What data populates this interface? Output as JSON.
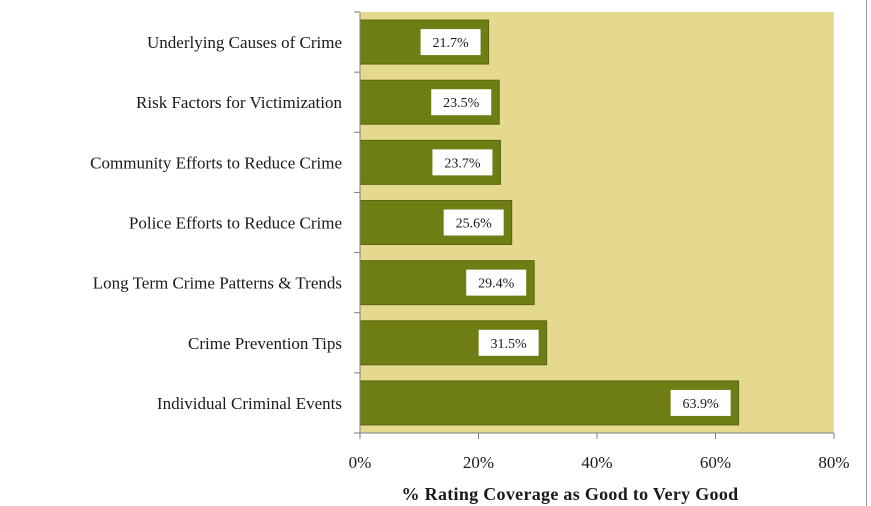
{
  "chart_data": {
    "type": "bar",
    "orientation": "horizontal",
    "categories": [
      "Underlying Causes of Crime",
      "Risk Factors for Victimization",
      "Community Efforts to Reduce Crime",
      "Police Efforts to Reduce Crime",
      "Long Term Crime Patterns & Trends",
      "Crime Prevention Tips",
      "Individual Criminal Events"
    ],
    "values": [
      21.7,
      23.5,
      23.7,
      25.6,
      29.4,
      31.5,
      63.9
    ],
    "data_labels": [
      "21.7%",
      "23.5%",
      "23.7%",
      "25.6%",
      "29.4%",
      "31.5%",
      "63.9%"
    ],
    "xlim": [
      0,
      80
    ],
    "xticks": [
      0,
      20,
      40,
      60,
      80
    ],
    "xtick_labels": [
      "0%",
      "20%",
      "40%",
      "60%",
      "80%"
    ],
    "xlabel": "% Rating Coverage as Good to Very Good",
    "ylabel": "",
    "title": "",
    "grid": false,
    "colors": {
      "bar": "#6e7d14",
      "bar_outline": "#5a6610",
      "plot_background": "#e5d990",
      "axis": "#7f7f7f"
    }
  }
}
